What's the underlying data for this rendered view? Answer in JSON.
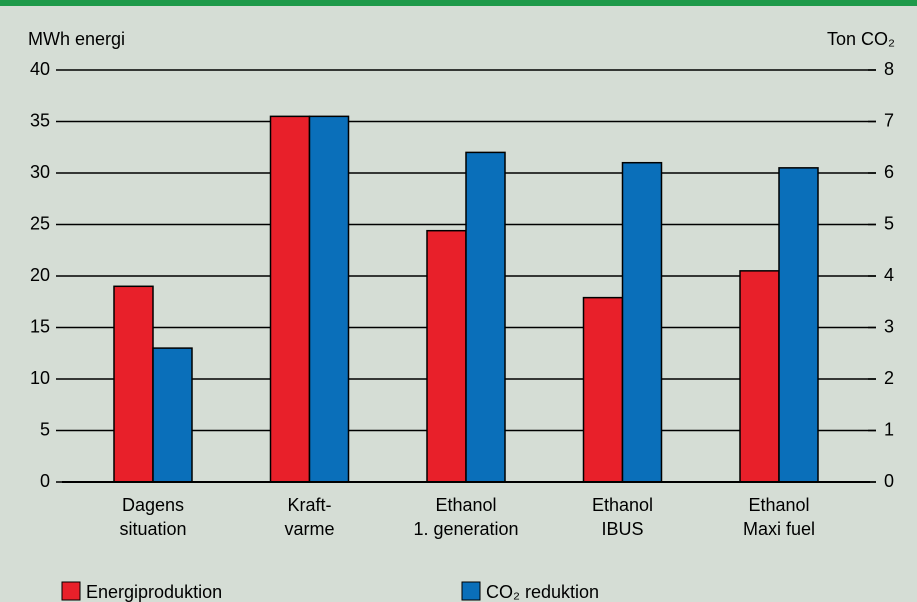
{
  "chart_data": {
    "type": "bar",
    "y_label": "MWh energi",
    "y2_label": "Ton CO₂",
    "categories": [
      [
        "Dagens",
        "situation"
      ],
      [
        "Kraft-",
        "varme"
      ],
      [
        "Ethanol",
        "1. generation"
      ],
      [
        "Ethanol",
        "IBUS"
      ],
      [
        "Ethanol",
        "Maxi fuel"
      ]
    ],
    "series": [
      {
        "name": "Energiproduktion",
        "color": "#e8202a",
        "values": [
          19,
          35.5,
          24.4,
          17.9,
          20.5
        ]
      },
      {
        "name": "CO₂ reduktion",
        "color": "#0a6fba",
        "axis": "y2",
        "values": [
          2.6,
          7.1,
          6.4,
          6.2,
          6.1
        ]
      }
    ],
    "ylim": [
      0,
      40
    ],
    "yticks": [
      0,
      5,
      10,
      15,
      20,
      25,
      30,
      35,
      40
    ],
    "y2lim": [
      0,
      8
    ],
    "y2ticks": [
      0,
      1,
      2,
      3,
      4,
      5,
      6,
      7,
      8
    ],
    "grid": true
  }
}
